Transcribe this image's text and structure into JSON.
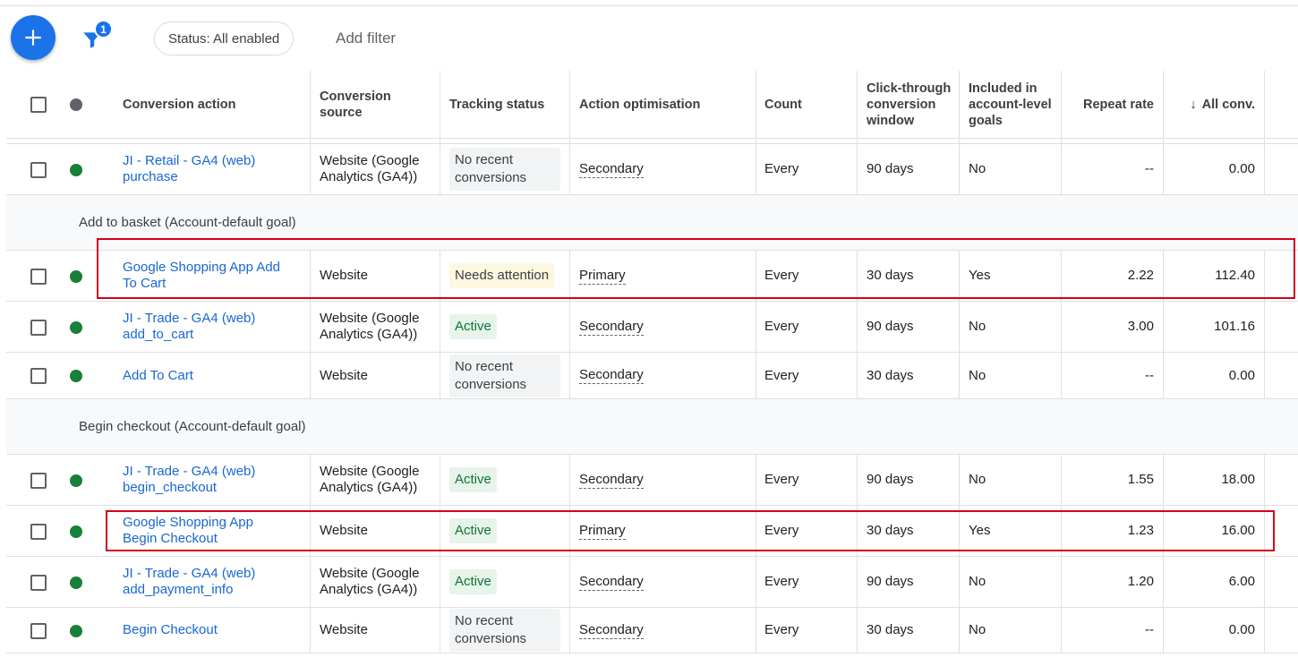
{
  "toolbar": {
    "add_icon": "plus-icon",
    "filter_icon": "filter-icon",
    "filter_count": "1",
    "status_chip": "Status: All enabled",
    "add_filter": "Add filter"
  },
  "columns": {
    "action": "Conversion action",
    "source": "Conversion source",
    "tracking": "Tracking status",
    "optimisation": "Action optimisation",
    "count": "Count",
    "window": "Click-through conversion window",
    "goals": "Included in account-level goals",
    "repeat": "Repeat rate",
    "all_conv": "All conv."
  },
  "colors": {
    "status_dot": "#188038",
    "brand": "#1a73e8",
    "highlight": "#d0021b"
  },
  "rows": [
    {
      "action": "JI - Retail - GA4 (web) purchase",
      "source": "Website (Google Analytics (GA4))",
      "tracking": "No recent conversions",
      "tracking_kind": "grey",
      "optimisation": "Secondary",
      "count": "Every",
      "window": "90 days",
      "goals": "No",
      "repeat": "--",
      "all_conv": "0.00"
    },
    {
      "group": "Add to basket (Account-default goal)"
    },
    {
      "action": "Google Shopping App Add To Cart",
      "source": "Website",
      "tracking": "Needs attention",
      "tracking_kind": "yellow",
      "optimisation": "Primary",
      "count": "Every",
      "window": "30 days",
      "goals": "Yes",
      "repeat": "2.22",
      "all_conv": "112.40"
    },
    {
      "action": "JI - Trade - GA4 (web) add_to_cart",
      "source": "Website (Google Analytics (GA4))",
      "tracking": "Active",
      "tracking_kind": "green",
      "optimisation": "Secondary",
      "count": "Every",
      "window": "90 days",
      "goals": "No",
      "repeat": "3.00",
      "all_conv": "101.16"
    },
    {
      "action": "Add To Cart",
      "source": "Website",
      "tracking": "No recent conversions",
      "tracking_kind": "grey",
      "optimisation": "Secondary",
      "count": "Every",
      "window": "30 days",
      "goals": "No",
      "repeat": "--",
      "all_conv": "0.00"
    },
    {
      "group": "Begin checkout (Account-default goal)"
    },
    {
      "action": "JI - Trade - GA4 (web) begin_checkout",
      "source": "Website (Google Analytics (GA4))",
      "tracking": "Active",
      "tracking_kind": "green",
      "optimisation": "Secondary",
      "count": "Every",
      "window": "90 days",
      "goals": "No",
      "repeat": "1.55",
      "all_conv": "18.00"
    },
    {
      "action": "Google Shopping App Begin Checkout",
      "source": "Website",
      "tracking": "Active",
      "tracking_kind": "green",
      "optimisation": "Primary",
      "count": "Every",
      "window": "30 days",
      "goals": "Yes",
      "repeat": "1.23",
      "all_conv": "16.00"
    },
    {
      "action": "JI - Trade - GA4 (web) add_payment_info",
      "source": "Website (Google Analytics (GA4))",
      "tracking": "Active",
      "tracking_kind": "green",
      "optimisation": "Secondary",
      "count": "Every",
      "window": "90 days",
      "goals": "No",
      "repeat": "1.20",
      "all_conv": "6.00"
    },
    {
      "action": "Begin Checkout",
      "source": "Website",
      "tracking": "No recent conversions",
      "tracking_kind": "grey",
      "optimisation": "Secondary",
      "count": "Every",
      "window": "30 days",
      "goals": "No",
      "repeat": "--",
      "all_conv": "0.00"
    }
  ]
}
